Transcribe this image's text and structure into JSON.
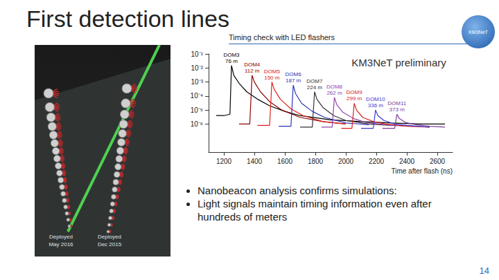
{
  "slide": {
    "title": "First detection lines",
    "subtitle": "Timing check with LED flashers",
    "logo": "KM3NeT",
    "bullets": [
      "Nanobeacon analysis confirms simulations:",
      "Light signals maintain timing information even after hundreds of meters"
    ],
    "image_labels": [
      [
        "Deployed",
        "May 2016"
      ],
      [
        "Deployed",
        "Dec 2015"
      ]
    ],
    "page": "14"
  },
  "chart_data": {
    "type": "line",
    "annotation": "KM3NeT preliminary",
    "x_label": "Time after flash (ns)",
    "xlim": [
      1100,
      2700
    ],
    "xticks": [
      1200,
      1400,
      1600,
      1800,
      2000,
      2200,
      2400,
      2600
    ],
    "ylim": [
      1e-08,
      0.1
    ],
    "yticks": [
      {
        "value": 0.1,
        "label": "10⁻¹"
      },
      {
        "value": 0.01,
        "label": "10⁻²"
      },
      {
        "value": 0.001,
        "label": "10⁻³"
      },
      {
        "value": 0.0001,
        "label": "10⁻⁴"
      },
      {
        "value": 1e-05,
        "label": "10⁻⁵"
      },
      {
        "value": 1e-06,
        "label": "10⁻⁶"
      }
    ],
    "log": "y",
    "grid": false,
    "series": [
      {
        "name": "DOM3",
        "distance": "76 m",
        "color": "#000000",
        "x": [
          1150,
          1200,
          1240,
          1250,
          1265,
          1300,
          1350,
          1420,
          1500,
          1600,
          1700,
          1900,
          2100,
          2300,
          2500,
          2650
        ],
        "values": [
          4e-06,
          4e-06,
          5e-06,
          0.015,
          0.003,
          0.0008,
          0.0002,
          6e-05,
          2e-05,
          8e-06,
          4e-06,
          2e-06,
          1.5e-06,
          1.2e-06,
          1e-06,
          1e-06
        ]
      },
      {
        "name": "DOM4",
        "distance": "112 m",
        "color": "#8b0000",
        "x": [
          1300,
          1370,
          1385,
          1400,
          1440,
          1500,
          1580,
          1700,
          1850,
          2000
        ],
        "values": [
          1e-06,
          1e-06,
          0.003,
          0.001,
          0.0002,
          4e-05,
          1e-05,
          3e-06,
          1.5e-06,
          1e-06
        ]
      },
      {
        "name": "DOM5",
        "distance": "150 m",
        "color": "#e0201b",
        "x": [
          1420,
          1500,
          1515,
          1530,
          1570,
          1640,
          1720,
          1850,
          2000
        ],
        "values": [
          8e-07,
          8e-07,
          0.001,
          0.0003,
          6e-05,
          1.2e-05,
          4e-06,
          1.5e-06,
          1e-06
        ]
      },
      {
        "name": "DOM6",
        "distance": "187 m",
        "color": "#2a35b5",
        "x": [
          1560,
          1640,
          1655,
          1670,
          1710,
          1780,
          1860,
          2000,
          2150
        ],
        "values": [
          7e-07,
          7e-07,
          0.0006,
          0.00015,
          3e-05,
          8e-06,
          3e-06,
          1.2e-06,
          9e-07
        ]
      },
      {
        "name": "DOM7",
        "distance": "224 m",
        "color": "#333333",
        "x": [
          1700,
          1780,
          1795,
          1810,
          1850,
          1920,
          2000,
          2150,
          2300
        ],
        "values": [
          6e-07,
          6e-07,
          0.0002,
          6e-05,
          1.5e-05,
          4e-06,
          1.8e-06,
          1e-06,
          8e-07
        ]
      },
      {
        "name": "DOM8",
        "distance": "262 m",
        "color": "#8e44ad",
        "x": [
          1840,
          1910,
          1925,
          1940,
          1980,
          2050,
          2130,
          2300,
          2450
        ],
        "values": [
          6e-07,
          6e-07,
          8e-05,
          2.5e-05,
          7e-06,
          2.5e-06,
          1.3e-06,
          8e-07,
          7e-07
        ]
      },
      {
        "name": "DOM9",
        "distance": "299 m",
        "color": "#d62020",
        "x": [
          1970,
          2040,
          2055,
          2070,
          2110,
          2180,
          2260,
          2400,
          2550
        ],
        "values": [
          5e-07,
          5e-07,
          3e-05,
          1e-05,
          3e-06,
          1.5e-06,
          1e-06,
          7e-07,
          6e-07
        ]
      },
      {
        "name": "DOM10",
        "distance": "336 m",
        "color": "#3b3bd0",
        "x": [
          2100,
          2180,
          2195,
          2210,
          2250,
          2320,
          2400,
          2550
        ],
        "values": [
          5e-07,
          5e-07,
          1e-05,
          4e-06,
          1.8e-06,
          1e-06,
          8e-07,
          6e-07
        ]
      },
      {
        "name": "DOM11",
        "distance": "373 m",
        "color": "#7d3c98",
        "x": [
          2240,
          2320,
          2335,
          2350,
          2390,
          2460,
          2550,
          2650
        ],
        "values": [
          5e-07,
          5e-07,
          5e-06,
          2.5e-06,
          1.3e-06,
          9e-07,
          7e-07,
          6e-07
        ]
      }
    ]
  }
}
